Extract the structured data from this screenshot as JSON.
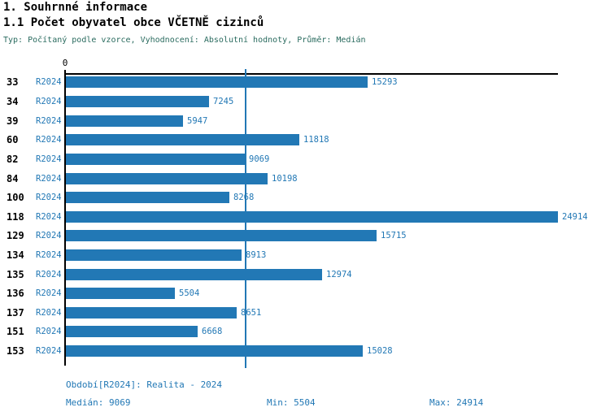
{
  "header": {
    "section_title": "1. Souhrnné informace",
    "chart_title": "1.1 Počet obyvatel obce VČETNĚ cizinců",
    "subtitle": "Typ: Počítaný podle vzorce, Vyhodnocení: Absolutní hodnoty, Průměr: Medián"
  },
  "chart_data": {
    "type": "bar",
    "orientation": "horizontal",
    "title": "1.1 Počet obyvatel obce VČETNĚ cizinců",
    "categories": [
      "33",
      "34",
      "39",
      "60",
      "82",
      "84",
      "100",
      "118",
      "129",
      "134",
      "135",
      "136",
      "137",
      "151",
      "153"
    ],
    "series": [
      {
        "name": "R2024",
        "values": [
          15293,
          7245,
          5947,
          11818,
          9069,
          10198,
          8268,
          24914,
          15715,
          8913,
          12974,
          5504,
          8651,
          6668,
          15028
        ]
      }
    ],
    "x_axis": {
      "zero_label": "0",
      "min": 0,
      "max": 24914
    },
    "median_line_value": 9069,
    "value_labels_position": "outside-right",
    "grid": false,
    "bar_color": "#2278b5"
  },
  "footer": {
    "period": "Období[R2024]: Realita - 2024",
    "median": "Medián: 9069",
    "min": "Min: 5504",
    "max": "Max: 24914"
  },
  "colors": {
    "accent_blue": "#2278b5",
    "subtitle_teal": "#2a6b5f",
    "axis_black": "#000000",
    "background": "#ffffff"
  }
}
